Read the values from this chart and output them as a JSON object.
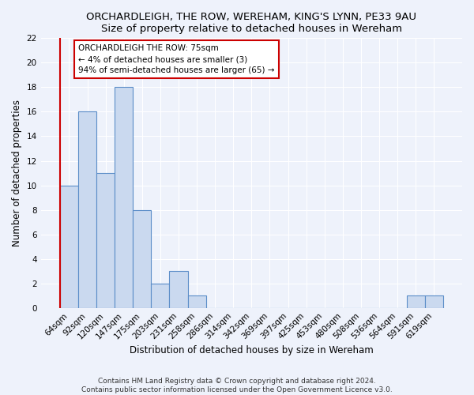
{
  "title": "ORCHARDLEIGH, THE ROW, WEREHAM, KING'S LYNN, PE33 9AU",
  "subtitle": "Size of property relative to detached houses in Wereham",
  "xlabel": "Distribution of detached houses by size in Wereham",
  "ylabel": "Number of detached properties",
  "footnote1": "Contains HM Land Registry data © Crown copyright and database right 2024.",
  "footnote2": "Contains public sector information licensed under the Open Government Licence v3.0.",
  "categories": [
    "64sqm",
    "92sqm",
    "120sqm",
    "147sqm",
    "175sqm",
    "203sqm",
    "231sqm",
    "258sqm",
    "286sqm",
    "314sqm",
    "342sqm",
    "369sqm",
    "397sqm",
    "425sqm",
    "453sqm",
    "480sqm",
    "508sqm",
    "536sqm",
    "564sqm",
    "591sqm",
    "619sqm"
  ],
  "values": [
    10,
    16,
    11,
    18,
    8,
    2,
    3,
    1,
    0,
    0,
    0,
    0,
    0,
    0,
    0,
    0,
    0,
    0,
    0,
    1,
    1
  ],
  "bar_color": "#cad9ef",
  "bar_edge_color": "#5b8dc8",
  "vline_color": "#cc0000",
  "annotation_text": "ORCHARDLEIGH THE ROW: 75sqm\n← 4% of detached houses are smaller (3)\n94% of semi-detached houses are larger (65) →",
  "annotation_box_color": "#ffffff",
  "annotation_box_edge_color": "#cc0000",
  "ylim": [
    0,
    22
  ],
  "yticks": [
    0,
    2,
    4,
    6,
    8,
    10,
    12,
    14,
    16,
    18,
    20,
    22
  ],
  "background_color": "#eef2fb",
  "grid_color": "#ffffff",
  "title_fontsize": 9.5,
  "axis_label_fontsize": 8.5,
  "tick_fontsize": 7.5,
  "annotation_fontsize": 7.5,
  "footnote_fontsize": 6.5
}
